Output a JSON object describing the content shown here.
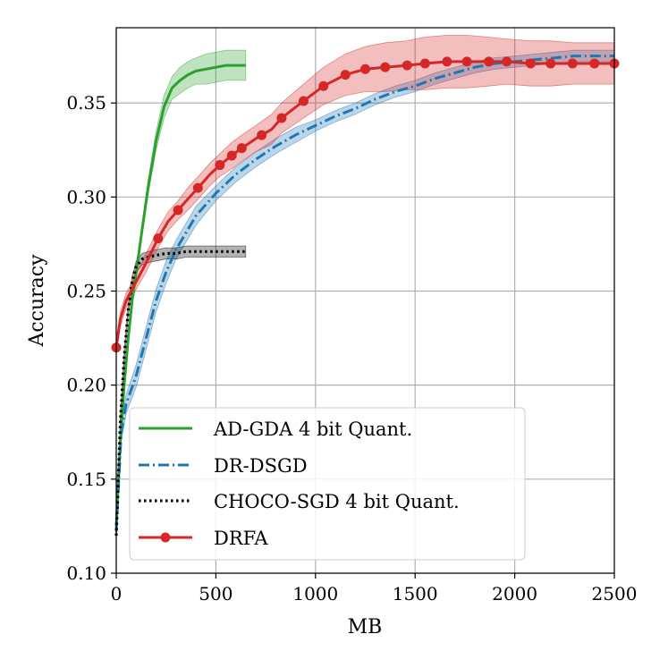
{
  "chart_data": {
    "type": "line",
    "title": "",
    "xlabel": "MB",
    "ylabel": "Accuracy",
    "xlim": [
      0,
      2500
    ],
    "ylim": [
      0.1,
      0.39
    ],
    "xticks": [
      0,
      500,
      1000,
      1500,
      2000,
      2500
    ],
    "xtick_labels": [
      "0",
      "500",
      "1000",
      "1500",
      "2000",
      "2500"
    ],
    "yticks": [
      0.1,
      0.15,
      0.2,
      0.25,
      0.3,
      0.35
    ],
    "ytick_labels": [
      "0.10",
      "0.15",
      "0.20",
      "0.25",
      "0.30",
      "0.35"
    ],
    "grid": true,
    "legend_position": "lower-left",
    "series": [
      {
        "name": "AD-GDA 4 bit Quant.",
        "color": "#2ca02c",
        "style": "solid",
        "x": [
          0,
          20,
          40,
          60,
          80,
          100,
          130,
          160,
          200,
          240,
          280,
          320,
          360,
          400,
          450,
          500,
          550,
          600,
          650
        ],
        "y": [
          0.125,
          0.17,
          0.2,
          0.225,
          0.245,
          0.26,
          0.283,
          0.305,
          0.33,
          0.348,
          0.358,
          0.362,
          0.365,
          0.367,
          0.368,
          0.369,
          0.37,
          0.37,
          0.37
        ],
        "band": [
          0.003,
          0.003,
          0.003,
          0.003,
          0.003,
          0.003,
          0.003,
          0.004,
          0.005,
          0.006,
          0.006,
          0.007,
          0.007,
          0.007,
          0.008,
          0.008,
          0.008,
          0.008,
          0.008
        ]
      },
      {
        "name": "DR-DSGD",
        "color": "#1f77b4",
        "style": "dashdot",
        "x": [
          0,
          25,
          50,
          100,
          150,
          200,
          250,
          300,
          400,
          500,
          600,
          700,
          800,
          900,
          1000,
          1100,
          1200,
          1300,
          1400,
          1500,
          1600,
          1700,
          1800,
          1900,
          2000,
          2100,
          2200,
          2300,
          2400,
          2500
        ],
        "y": [
          0.122,
          0.175,
          0.19,
          0.205,
          0.225,
          0.245,
          0.26,
          0.272,
          0.29,
          0.302,
          0.312,
          0.32,
          0.327,
          0.333,
          0.338,
          0.343,
          0.347,
          0.352,
          0.356,
          0.359,
          0.363,
          0.366,
          0.369,
          0.371,
          0.372,
          0.373,
          0.374,
          0.375,
          0.375,
          0.375
        ],
        "band": [
          0.004,
          0.005,
          0.005,
          0.006,
          0.006,
          0.006,
          0.006,
          0.005,
          0.005,
          0.004,
          0.004,
          0.004,
          0.004,
          0.004,
          0.003,
          0.003,
          0.003,
          0.003,
          0.003,
          0.003,
          0.003,
          0.003,
          0.003,
          0.003,
          0.003,
          0.003,
          0.003,
          0.003,
          0.003,
          0.003
        ]
      },
      {
        "name": "CHOCO-SGD 4 bit Quant.",
        "color": "#000000",
        "style": "dotted",
        "x": [
          0,
          20,
          40,
          60,
          80,
          100,
          130,
          160,
          200,
          250,
          300,
          350,
          400,
          450,
          500,
          550,
          600,
          650
        ],
        "y": [
          0.12,
          0.18,
          0.215,
          0.24,
          0.255,
          0.263,
          0.267,
          0.268,
          0.269,
          0.27,
          0.27,
          0.271,
          0.271,
          0.271,
          0.271,
          0.271,
          0.271,
          0.271
        ],
        "band": [
          0.003,
          0.003,
          0.003,
          0.003,
          0.003,
          0.003,
          0.003,
          0.003,
          0.003,
          0.003,
          0.003,
          0.003,
          0.003,
          0.003,
          0.003,
          0.003,
          0.003,
          0.003
        ]
      },
      {
        "name": "DRFA",
        "color": "#d62728",
        "style": "solid",
        "marker": "circle",
        "x": [
          0,
          20,
          50,
          100,
          150,
          210,
          260,
          310,
          360,
          420,
          470,
          520,
          580,
          630,
          700,
          780,
          830,
          940,
          1040,
          1150,
          1250,
          1350,
          1460,
          1550,
          1660,
          1760,
          1870,
          1960,
          2080,
          2180,
          2290,
          2400,
          2500
        ],
        "y": [
          0.22,
          0.235,
          0.245,
          0.255,
          0.265,
          0.278,
          0.287,
          0.293,
          0.299,
          0.306,
          0.312,
          0.317,
          0.322,
          0.326,
          0.331,
          0.336,
          0.342,
          0.351,
          0.359,
          0.365,
          0.368,
          0.369,
          0.37,
          0.371,
          0.372,
          0.372,
          0.372,
          0.372,
          0.371,
          0.371,
          0.371,
          0.371,
          0.371
        ],
        "band": [
          0.004,
          0.004,
          0.004,
          0.004,
          0.005,
          0.005,
          0.005,
          0.005,
          0.006,
          0.006,
          0.006,
          0.006,
          0.007,
          0.007,
          0.007,
          0.008,
          0.008,
          0.009,
          0.01,
          0.011,
          0.012,
          0.013,
          0.013,
          0.014,
          0.014,
          0.014,
          0.013,
          0.012,
          0.012,
          0.012,
          0.011,
          0.011,
          0.011
        ],
        "marker_x": [
          0,
          210,
          310,
          410,
          520,
          580,
          630,
          730,
          830,
          940,
          1040,
          1150,
          1250,
          1350,
          1460,
          1550,
          1660,
          1760,
          1870,
          1960,
          2080,
          2180,
          2290,
          2400,
          2500
        ]
      }
    ]
  }
}
